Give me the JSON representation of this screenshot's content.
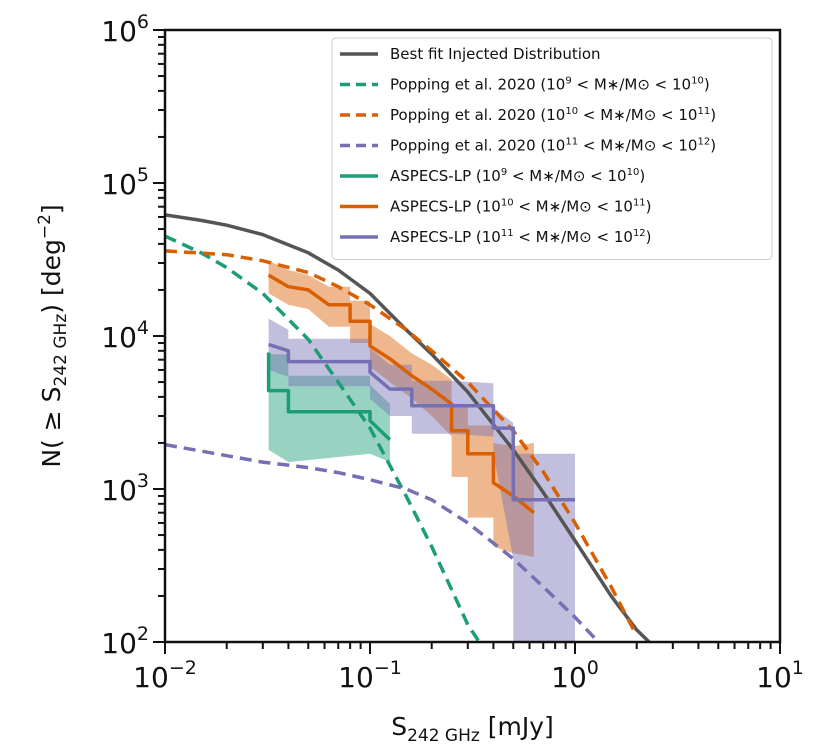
{
  "chart_data": {
    "type": "line",
    "x_scale": "log",
    "y_scale": "log",
    "xlim": [
      0.01,
      10
    ],
    "ylim": [
      100,
      1000000
    ],
    "xlabel": {
      "main": "S",
      "sub": "242 GHz",
      "unit": " [mJy]"
    },
    "ylabel": {
      "prefix": "N( ≥ S",
      "sub": "242 GHz",
      "suffix": ") [deg",
      "sup": "−2",
      "close": "]"
    },
    "x_ticks": [
      {
        "value": 0.01,
        "base": "10",
        "exp": "−2"
      },
      {
        "value": 0.1,
        "base": "10",
        "exp": "−1"
      },
      {
        "value": 1,
        "base": "10",
        "exp": "0"
      },
      {
        "value": 10,
        "base": "10",
        "exp": "1"
      }
    ],
    "y_ticks": [
      {
        "value": 100,
        "base": "10",
        "exp": "2"
      },
      {
        "value": 1000,
        "base": "10",
        "exp": "3"
      },
      {
        "value": 10000,
        "base": "10",
        "exp": "4"
      },
      {
        "value": 100000,
        "base": "10",
        "exp": "5"
      },
      {
        "value": 1000000,
        "base": "10",
        "exp": "6"
      }
    ],
    "grid": false,
    "legend_position": "top-right",
    "colors": {
      "best_fit": "#555555",
      "low": "#1b9e77",
      "mid": "#d95f02",
      "high": "#7570b3"
    },
    "series": [
      {
        "id": "bestfit",
        "name": "Best fit Injected Distribution",
        "legend": {
          "pre": "Best fit Injected Distribution",
          "exp1": "",
          "mid": "",
          "exp2": "",
          "post": ""
        },
        "style": "solid",
        "color": "#555555",
        "x": [
          0.01,
          0.015,
          0.02,
          0.03,
          0.05,
          0.07,
          0.1,
          0.15,
          0.2,
          0.3,
          0.5,
          0.7,
          1.0,
          1.5,
          2.0,
          2.3
        ],
        "y": [
          62000,
          57000,
          53000,
          46000,
          35000,
          27000,
          19000,
          11000,
          7600,
          4300,
          1800,
          950,
          460,
          200,
          120,
          100
        ]
      },
      {
        "id": "popping_low",
        "name": "Popping et al. 2020 (10^9 < M*/Msun < 10^10)",
        "legend": {
          "pre": "Popping et al. 2020 (10",
          "exp1": "9",
          "mid": " < M∗/M⊙ < 10",
          "exp2": "10",
          "post": ")"
        },
        "style": "dashed",
        "color": "#1b9e77",
        "x": [
          0.01,
          0.015,
          0.02,
          0.03,
          0.05,
          0.07,
          0.1,
          0.15,
          0.2,
          0.25,
          0.3,
          0.35
        ],
        "y": [
          45000,
          35000,
          28000,
          19000,
          9500,
          5000,
          2500,
          900,
          420,
          220,
          130,
          95
        ]
      },
      {
        "id": "popping_mid",
        "name": "Popping et al. 2020 (10^10 < M*/Msun < 10^11)",
        "legend": {
          "pre": "Popping et al. 2020 (10",
          "exp1": "10",
          "mid": " < M∗/M⊙ < 10",
          "exp2": "11",
          "post": ")"
        },
        "style": "dashed",
        "color": "#d95f02",
        "x": [
          0.01,
          0.02,
          0.03,
          0.05,
          0.07,
          0.1,
          0.15,
          0.2,
          0.3,
          0.5,
          0.7,
          1.0,
          1.5,
          2.0
        ],
        "y": [
          36000,
          34000,
          31000,
          26000,
          21000,
          16000,
          11000,
          8000,
          5000,
          2400,
          1300,
          600,
          230,
          110
        ]
      },
      {
        "id": "popping_high",
        "name": "Popping et al. 2020 (10^11 < M*/Msun < 10^12)",
        "legend": {
          "pre": "Popping et al. 2020 (10",
          "exp1": "11",
          "mid": " < M∗/M⊙ < 10",
          "exp2": "12",
          "post": ")"
        },
        "style": "dashed",
        "color": "#7570b3",
        "x": [
          0.01,
          0.02,
          0.03,
          0.05,
          0.07,
          0.1,
          0.15,
          0.2,
          0.3,
          0.5,
          0.7,
          1.0,
          1.3
        ],
        "y": [
          1950,
          1650,
          1500,
          1380,
          1280,
          1150,
          1000,
          850,
          600,
          350,
          230,
          145,
          100
        ]
      },
      {
        "id": "aspecs_low",
        "name": "ASPECS-LP (10^9 < M*/Msun < 10^10)",
        "legend": {
          "pre": "ASPECS-LP (10",
          "exp1": "9",
          "mid": " < M∗/M⊙ < 10",
          "exp2": "10",
          "post": ")"
        },
        "style": "solid",
        "color": "#1b9e77",
        "x": [
          0.032,
          0.032,
          0.04,
          0.04,
          0.1,
          0.1,
          0.125
        ],
        "y": [
          7800,
          4400,
          4400,
          3200,
          3200,
          2800,
          2100
        ],
        "band_low": [
          1800,
          1800,
          1500,
          1500,
          1700,
          1700,
          1500
        ],
        "band_high": [
          11000,
          7600,
          7600,
          5500,
          5500,
          4800,
          3600
        ]
      },
      {
        "id": "aspecs_mid",
        "name": "ASPECS-LP (10^10 < M*/Msun < 10^11)",
        "legend": {
          "pre": "ASPECS-LP (10",
          "exp1": "10",
          "mid": " < M∗/M⊙ < 10",
          "exp2": "11",
          "post": ")"
        },
        "style": "solid",
        "color": "#d95f02",
        "x": [
          0.032,
          0.04,
          0.05,
          0.063,
          0.063,
          0.08,
          0.08,
          0.1,
          0.1,
          0.125,
          0.16,
          0.2,
          0.25,
          0.25,
          0.3,
          0.3,
          0.4,
          0.4,
          0.5,
          0.63
        ],
        "y": [
          25000,
          21000,
          20000,
          16000,
          16000,
          16000,
          12500,
          12500,
          8600,
          7100,
          5500,
          4500,
          3600,
          2400,
          2400,
          1700,
          1700,
          1100,
          900,
          700
        ],
        "band_low": [
          19000,
          16000,
          15000,
          11500,
          11500,
          11500,
          9000,
          9000,
          6300,
          5000,
          3900,
          3000,
          2200,
          1200,
          1200,
          650,
          650,
          420,
          380,
          360
        ],
        "band_high": [
          31000,
          27000,
          25000,
          21000,
          21000,
          21000,
          17000,
          17000,
          12000,
          10000,
          7700,
          6500,
          5200,
          3600,
          3600,
          2600,
          2600,
          2000,
          1900,
          2000
        ]
      },
      {
        "id": "aspecs_high",
        "name": "ASPECS-LP (10^11 < M*/Msun < 10^12)",
        "legend": {
          "pre": "ASPECS-LP (10",
          "exp1": "11",
          "mid": " < M∗/M⊙ < 10",
          "exp2": "12",
          "post": ")"
        },
        "style": "solid",
        "color": "#7570b3",
        "x": [
          0.032,
          0.04,
          0.04,
          0.1,
          0.1,
          0.125,
          0.16,
          0.16,
          0.25,
          0.4,
          0.4,
          0.5,
          0.5,
          1.0
        ],
        "y": [
          8800,
          8000,
          6800,
          6800,
          5800,
          4500,
          4500,
          3500,
          3500,
          3500,
          2500,
          2500,
          850,
          850
        ],
        "band_low": [
          6000,
          5400,
          4700,
          4700,
          3900,
          3000,
          3000,
          2300,
          2300,
          2200,
          1700,
          350,
          100,
          100
        ],
        "band_high": [
          13000,
          11000,
          9600,
          9600,
          8300,
          6500,
          6500,
          5100,
          5100,
          4900,
          3400,
          2700,
          1700,
          1700
        ]
      }
    ]
  }
}
